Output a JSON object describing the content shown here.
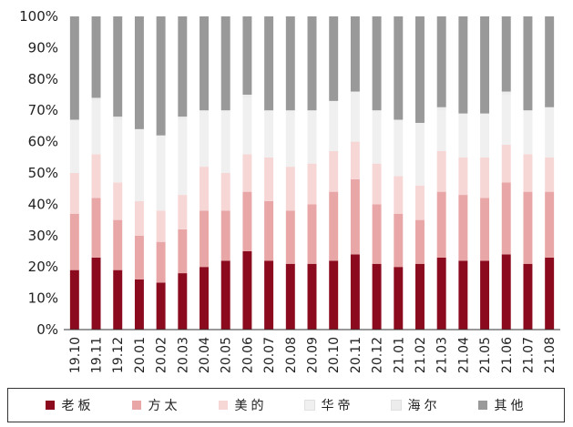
{
  "chart_data": {
    "type": "bar",
    "stacked": true,
    "categories": [
      "19.10",
      "19.11",
      "19.12",
      "20.01",
      "20.02",
      "20.03",
      "20.04",
      "20.05",
      "20.06",
      "20.07",
      "20.08",
      "20.09",
      "20.10",
      "20.11",
      "20.12",
      "21.01",
      "21.02",
      "21.03",
      "21.04",
      "21.05",
      "21.06",
      "21.07",
      "21.08"
    ],
    "ylim": [
      0,
      100
    ],
    "yticks": [
      "0%",
      "10%",
      "20%",
      "30%",
      "40%",
      "50%",
      "60%",
      "70%",
      "80%",
      "90%",
      "100%"
    ],
    "legend_position": "bottom",
    "series": [
      {
        "name": "老板",
        "color": "#8b0a1e",
        "values": [
          19,
          23,
          19,
          16,
          15,
          18,
          20,
          22,
          25,
          22,
          21,
          21,
          22,
          24,
          21,
          20,
          21,
          23,
          22,
          22,
          24,
          21,
          23
        ]
      },
      {
        "name": "方太",
        "color": "#e8a6a6",
        "values": [
          18,
          19,
          16,
          14,
          13,
          14,
          18,
          16,
          19,
          19,
          17,
          19,
          22,
          24,
          19,
          17,
          14,
          21,
          21,
          20,
          23,
          23,
          21
        ]
      },
      {
        "name": "美的",
        "color": "#f7d6d6",
        "values": [
          13,
          14,
          12,
          11,
          10,
          11,
          14,
          12,
          12,
          14,
          14,
          13,
          13,
          12,
          13,
          12,
          11,
          13,
          12,
          13,
          12,
          12,
          11
        ]
      },
      {
        "name": "华帝",
        "color": "#f0f0f0",
        "values": [
          17,
          17,
          20,
          23,
          24,
          24,
          18,
          20,
          18,
          15,
          18,
          17,
          16,
          16,
          17,
          18,
          20,
          13,
          14,
          14,
          16,
          14,
          16
        ]
      },
      {
        "name": "海尔",
        "color": "#ececec",
        "values": [
          0,
          1,
          1,
          0,
          0,
          1,
          0,
          0,
          1,
          0,
          0,
          0,
          0,
          0,
          0,
          0,
          0,
          1,
          0,
          0,
          1,
          0,
          0
        ]
      },
      {
        "name": "其他",
        "color": "#999999",
        "values": [
          33,
          26,
          32,
          36,
          38,
          32,
          30,
          30,
          25,
          30,
          30,
          30,
          27,
          24,
          30,
          33,
          34,
          29,
          31,
          31,
          24,
          30,
          29
        ]
      }
    ]
  }
}
